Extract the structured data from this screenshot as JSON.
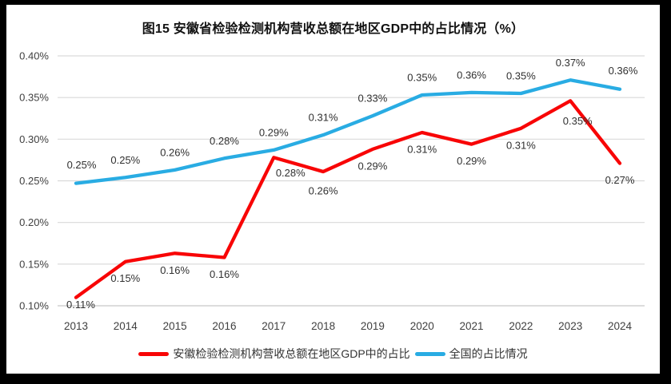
{
  "title": "图15 安徽省检验检测机构营收总额在地区GDP中的占比情况（%）",
  "frame": {
    "background": "#000000",
    "panel_background": "#ffffff"
  },
  "legend": [
    {
      "label": "安徽检验检测机构营收总额在地区GDP中的占比",
      "color": "#F80506"
    },
    {
      "label": "全国的占比情况",
      "color": "#29ACE3"
    }
  ],
  "colors": {
    "gridline": "#D9D9D9",
    "axis_line": "#C8C8C8",
    "tick_text": "#404040",
    "data_label_text": "#303030",
    "title_text": "#111111"
  },
  "chart_data": {
    "type": "line",
    "title": "图15 安徽省检验检测机构营收总额在地区GDP中的占比情况（%）",
    "xlabel": "",
    "ylabel": "",
    "grid": true,
    "legend_position": "bottom",
    "ylim": [
      0.1,
      0.4
    ],
    "yticks": [
      "0.40%",
      "0.35%",
      "0.30%",
      "0.25%",
      "0.20%",
      "0.15%",
      "0.10%"
    ],
    "categories": [
      "2013",
      "2014",
      "2015",
      "2016",
      "2017",
      "2018",
      "2019",
      "2020",
      "2021",
      "2022",
      "2023",
      "2024"
    ],
    "series": [
      {
        "name": "安徽检验检测机构营收总额在地区GDP中的占比",
        "color": "#F80506",
        "values": [
          0.11,
          0.15,
          0.16,
          0.16,
          0.28,
          0.26,
          0.29,
          0.31,
          0.29,
          0.31,
          0.35,
          0.27
        ],
        "labels": [
          "0.11%",
          "0.15%",
          "0.16%",
          "0.16%",
          "0.28%",
          "0.26%",
          "0.29%",
          "0.31%",
          "0.29%",
          "0.31%",
          "0.35%",
          "0.27%"
        ],
        "render_values": [
          0.11,
          0.153,
          0.163,
          0.158,
          0.278,
          0.261,
          0.288,
          0.308,
          0.294,
          0.313,
          0.346,
          0.271
        ],
        "label_side": "below",
        "label_offsets": {
          "0": [
            6,
            9
          ],
          "4": [
            21,
            19
          ],
          "5": [
            0,
            24
          ],
          "10": [
            9,
            25
          ]
        }
      },
      {
        "name": "全国的占比情况",
        "color": "#29ACE3",
        "values": [
          0.25,
          0.25,
          0.26,
          0.28,
          0.29,
          0.31,
          0.33,
          0.35,
          0.36,
          0.35,
          0.37,
          0.36
        ],
        "labels": [
          "0.25%",
          "0.25%",
          "0.26%",
          "0.28%",
          "0.29%",
          "0.31%",
          "0.33%",
          "0.35%",
          "0.36%",
          "0.35%",
          "0.37%",
          "0.36%"
        ],
        "render_values": [
          0.247,
          0.254,
          0.263,
          0.277,
          0.287,
          0.305,
          0.328,
          0.353,
          0.356,
          0.355,
          0.371,
          0.36
        ],
        "label_side": "above",
        "label_offsets": {
          "0": [
            7,
            -23
          ],
          "11": [
            4,
            -23
          ]
        }
      }
    ]
  }
}
